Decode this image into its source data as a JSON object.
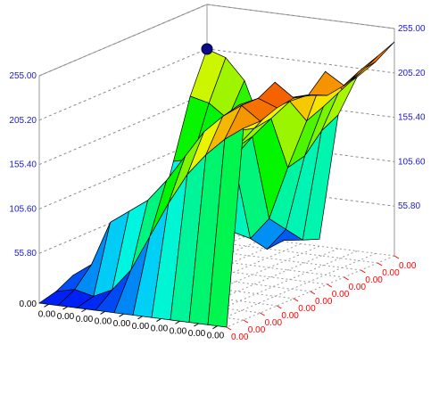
{
  "chart_data": {
    "type": "surface3d",
    "title": "",
    "xlabel": "",
    "ylabel": "",
    "zlabel": "",
    "z_ticks": [
      55.8,
      105.6,
      155.4,
      205.2,
      255.0
    ],
    "z_tick_labels": [
      "55.80",
      "105.60",
      "155.40",
      "205.20",
      "255.00"
    ],
    "z_min_label": "0.00",
    "zlim": [
      0,
      255
    ],
    "left_axis_tick_labels": [
      "0.00",
      "0.00",
      "0.00",
      "0.00",
      "0.00",
      "0.00",
      "0.00",
      "0.00",
      "0.00",
      "0.00"
    ],
    "right_axis_tick_labels": [
      "0.00",
      "0.00",
      "0.00",
      "0.00",
      "0.00",
      "0.00",
      "0.00",
      "0.00",
      "0.00",
      "0.00",
      "0.00"
    ],
    "grid": true,
    "surface": [
      [
        205,
        198,
        175,
        122,
        70,
        20,
        8,
        150,
        195,
        215,
        240
      ],
      [
        160,
        155,
        140,
        110,
        65,
        12,
        15,
        140,
        190,
        212,
        232
      ],
      [
        95,
        100,
        95,
        80,
        50,
        10,
        35,
        120,
        178,
        200,
        222
      ],
      [
        30,
        28,
        60,
        45,
        35,
        30,
        55,
        115,
        170,
        228,
        215
      ],
      [
        2,
        30,
        85,
        95,
        105,
        128,
        155,
        178,
        200,
        210,
        212
      ],
      [
        12,
        25,
        70,
        90,
        100,
        120,
        150,
        175,
        200,
        215,
        220
      ],
      [
        8,
        20,
        60,
        85,
        95,
        118,
        145,
        180,
        210,
        240,
        225
      ],
      [
        0,
        25,
        75,
        88,
        98,
        122,
        152,
        190,
        220,
        230,
        222
      ],
      [
        15,
        30,
        80,
        95,
        110,
        135,
        165,
        195,
        215,
        230,
        215
      ],
      [
        5,
        10,
        5,
        15,
        40,
        80,
        120,
        155,
        180,
        200,
        215
      ],
      [
        0,
        0,
        0,
        0,
        0,
        0,
        0,
        0,
        0,
        0,
        0
      ]
    ],
    "colors": {
      "axis_label_blue": "#1a1acc",
      "axis_label_red": "#ff0000",
      "axis_label_black": "#000000",
      "marker": "#0a0a8a"
    }
  }
}
